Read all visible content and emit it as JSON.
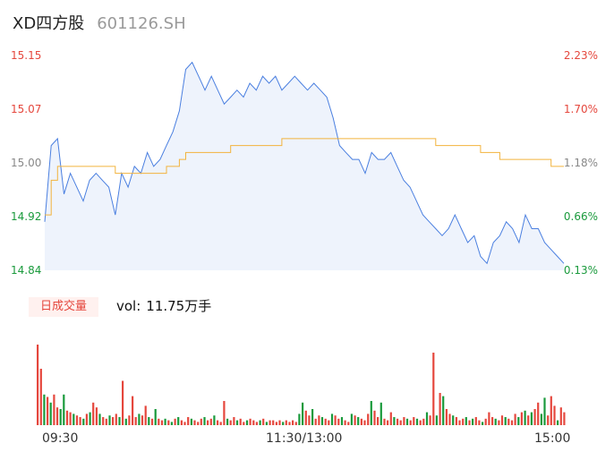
{
  "header": {
    "name": "XD四方股",
    "code": "601126.SH"
  },
  "price_axis": {
    "left": [
      {
        "label": "15.15",
        "color": "#e5473d"
      },
      {
        "label": "15.07",
        "color": "#e5473d"
      },
      {
        "label": "15.00",
        "color": "#888888"
      },
      {
        "label": "14.92",
        "color": "#1a9a3c"
      },
      {
        "label": "14.84",
        "color": "#1a9a3c"
      }
    ],
    "right": [
      {
        "label": "2.23%",
        "color": "#e5473d"
      },
      {
        "label": "1.70%",
        "color": "#e5473d"
      },
      {
        "label": "1.18%",
        "color": "#888888"
      },
      {
        "label": "0.66%",
        "color": "#1a9a3c"
      },
      {
        "label": "0.13%",
        "color": "#1a9a3c"
      }
    ]
  },
  "volume": {
    "tag": "日成交量",
    "label": "vol:",
    "value": "11.75万手"
  },
  "time_axis": [
    "09:30",
    "11:30/13:00",
    "15:00"
  ],
  "colors": {
    "price_line": "#4a7fe0",
    "avg_line": "#f2b33d",
    "up": "#e5473d",
    "down": "#1a9a3c",
    "fill": "#eef3fc"
  },
  "chart_data": {
    "type": "line",
    "ylim": [
      14.84,
      15.15
    ],
    "price": [
      14.91,
      15.02,
      15.03,
      14.95,
      14.98,
      14.96,
      14.94,
      14.97,
      14.98,
      14.97,
      14.96,
      14.92,
      14.98,
      14.96,
      14.99,
      14.98,
      15.01,
      14.99,
      15.0,
      15.02,
      15.04,
      15.07,
      15.13,
      15.14,
      15.12,
      15.1,
      15.12,
      15.1,
      15.08,
      15.09,
      15.1,
      15.09,
      15.11,
      15.1,
      15.12,
      15.11,
      15.12,
      15.1,
      15.11,
      15.12,
      15.11,
      15.1,
      15.11,
      15.1,
      15.09,
      15.06,
      15.02,
      15.01,
      15.0,
      15.0,
      14.98,
      15.01,
      15.0,
      15.0,
      15.01,
      14.99,
      14.97,
      14.96,
      14.94,
      14.92,
      14.91,
      14.9,
      14.89,
      14.9,
      14.92,
      14.9,
      14.88,
      14.89,
      14.86,
      14.85,
      14.88,
      14.89,
      14.91,
      14.9,
      14.88,
      14.92,
      14.9,
      14.9,
      14.88,
      14.87,
      14.86,
      14.85
    ],
    "avg": [
      14.92,
      14.97,
      14.99,
      14.99,
      14.99,
      14.99,
      14.99,
      14.99,
      14.99,
      14.99,
      14.99,
      14.98,
      14.98,
      14.98,
      14.98,
      14.98,
      14.98,
      14.98,
      14.98,
      14.99,
      14.99,
      15.0,
      15.01,
      15.01,
      15.01,
      15.01,
      15.01,
      15.01,
      15.01,
      15.02,
      15.02,
      15.02,
      15.02,
      15.02,
      15.02,
      15.02,
      15.02,
      15.03,
      15.03,
      15.03,
      15.03,
      15.03,
      15.03,
      15.03,
      15.03,
      15.03,
      15.03,
      15.03,
      15.03,
      15.03,
      15.03,
      15.03,
      15.03,
      15.03,
      15.03,
      15.03,
      15.03,
      15.03,
      15.03,
      15.03,
      15.03,
      15.02,
      15.02,
      15.02,
      15.02,
      15.02,
      15.02,
      15.02,
      15.01,
      15.01,
      15.01,
      15.0,
      15.0,
      15.0,
      15.0,
      15.0,
      15.0,
      15.0,
      15.0,
      14.99,
      14.99,
      14.99
    ],
    "volume": [
      [
        100,
        1
      ],
      [
        70,
        1
      ],
      [
        38,
        -1
      ],
      [
        35,
        1
      ],
      [
        28,
        -1
      ],
      [
        38,
        1
      ],
      [
        22,
        1
      ],
      [
        20,
        -1
      ],
      [
        38,
        -1
      ],
      [
        18,
        1
      ],
      [
        16,
        1
      ],
      [
        14,
        -1
      ],
      [
        12,
        1
      ],
      [
        10,
        1
      ],
      [
        8,
        -1
      ],
      [
        14,
        1
      ],
      [
        16,
        -1
      ],
      [
        28,
        1
      ],
      [
        22,
        1
      ],
      [
        14,
        -1
      ],
      [
        10,
        1
      ],
      [
        8,
        1
      ],
      [
        12,
        -1
      ],
      [
        10,
        1
      ],
      [
        14,
        1
      ],
      [
        10,
        -1
      ],
      [
        55,
        1
      ],
      [
        8,
        -1
      ],
      [
        12,
        1
      ],
      [
        36,
        1
      ],
      [
        10,
        1
      ],
      [
        14,
        -1
      ],
      [
        12,
        1
      ],
      [
        24,
        1
      ],
      [
        10,
        -1
      ],
      [
        8,
        1
      ],
      [
        20,
        -1
      ],
      [
        8,
        1
      ],
      [
        6,
        1
      ],
      [
        8,
        -1
      ],
      [
        6,
        1
      ],
      [
        4,
        -1
      ],
      [
        8,
        1
      ],
      [
        10,
        -1
      ],
      [
        6,
        1
      ],
      [
        4,
        1
      ],
      [
        10,
        1
      ],
      [
        8,
        -1
      ],
      [
        6,
        1
      ],
      [
        4,
        1
      ],
      [
        8,
        1
      ],
      [
        10,
        -1
      ],
      [
        6,
        1
      ],
      [
        8,
        1
      ],
      [
        12,
        -1
      ],
      [
        6,
        1
      ],
      [
        4,
        1
      ],
      [
        30,
        1
      ],
      [
        8,
        -1
      ],
      [
        6,
        1
      ],
      [
        10,
        1
      ],
      [
        6,
        -1
      ],
      [
        8,
        1
      ],
      [
        4,
        1
      ],
      [
        6,
        -1
      ],
      [
        8,
        1
      ],
      [
        6,
        1
      ],
      [
        4,
        1
      ],
      [
        6,
        -1
      ],
      [
        8,
        1
      ],
      [
        4,
        -1
      ],
      [
        6,
        1
      ],
      [
        6,
        1
      ],
      [
        4,
        1
      ],
      [
        6,
        1
      ],
      [
        4,
        -1
      ],
      [
        6,
        1
      ],
      [
        4,
        1
      ],
      [
        6,
        1
      ],
      [
        4,
        1
      ],
      [
        14,
        -1
      ],
      [
        28,
        -1
      ],
      [
        18,
        1
      ],
      [
        12,
        1
      ],
      [
        20,
        -1
      ],
      [
        8,
        1
      ],
      [
        12,
        1
      ],
      [
        10,
        -1
      ],
      [
        8,
        1
      ],
      [
        6,
        1
      ],
      [
        14,
        -1
      ],
      [
        12,
        1
      ],
      [
        8,
        1
      ],
      [
        10,
        -1
      ],
      [
        6,
        1
      ],
      [
        4,
        1
      ],
      [
        14,
        -1
      ],
      [
        12,
        1
      ],
      [
        10,
        -1
      ],
      [
        8,
        1
      ],
      [
        6,
        1
      ],
      [
        14,
        1
      ],
      [
        30,
        -1
      ],
      [
        18,
        1
      ],
      [
        10,
        1
      ],
      [
        28,
        -1
      ],
      [
        8,
        1
      ],
      [
        6,
        1
      ],
      [
        16,
        1
      ],
      [
        10,
        -1
      ],
      [
        8,
        1
      ],
      [
        6,
        1
      ],
      [
        10,
        1
      ],
      [
        8,
        -1
      ],
      [
        6,
        1
      ],
      [
        10,
        1
      ],
      [
        8,
        -1
      ],
      [
        6,
        1
      ],
      [
        8,
        1
      ],
      [
        16,
        -1
      ],
      [
        12,
        1
      ],
      [
        90,
        1
      ],
      [
        12,
        -1
      ],
      [
        40,
        1
      ],
      [
        36,
        -1
      ],
      [
        20,
        1
      ],
      [
        14,
        1
      ],
      [
        12,
        -1
      ],
      [
        10,
        1
      ],
      [
        6,
        1
      ],
      [
        8,
        1
      ],
      [
        10,
        -1
      ],
      [
        6,
        1
      ],
      [
        8,
        -1
      ],
      [
        10,
        1
      ],
      [
        6,
        1
      ],
      [
        4,
        -1
      ],
      [
        8,
        1
      ],
      [
        16,
        1
      ],
      [
        10,
        1
      ],
      [
        8,
        -1
      ],
      [
        6,
        1
      ],
      [
        12,
        1
      ],
      [
        10,
        -1
      ],
      [
        8,
        1
      ],
      [
        6,
        1
      ],
      [
        14,
        1
      ],
      [
        10,
        -1
      ],
      [
        16,
        1
      ],
      [
        18,
        -1
      ],
      [
        12,
        1
      ],
      [
        16,
        -1
      ],
      [
        20,
        1
      ],
      [
        28,
        1
      ],
      [
        14,
        -1
      ],
      [
        34,
        -1
      ],
      [
        12,
        1
      ],
      [
        36,
        1
      ],
      [
        24,
        1
      ],
      [
        6,
        -1
      ],
      [
        22,
        1
      ],
      [
        16,
        1
      ]
    ]
  }
}
